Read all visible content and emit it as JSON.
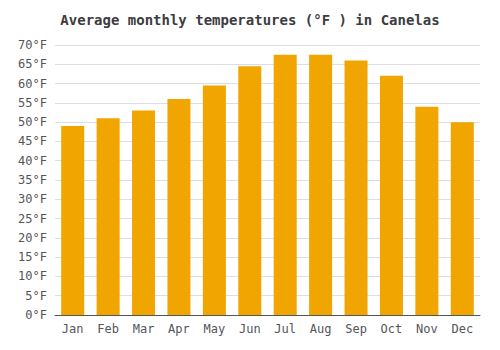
{
  "chart_data": {
    "type": "bar",
    "title": "Average monthly temperatures (°F ) in Canelas",
    "categories": [
      "Jan",
      "Feb",
      "Mar",
      "Apr",
      "May",
      "Jun",
      "Jul",
      "Aug",
      "Sep",
      "Oct",
      "Nov",
      "Dec"
    ],
    "values": [
      49.0,
      51.0,
      53.0,
      56.0,
      59.5,
      64.5,
      67.5,
      67.5,
      66.0,
      62.0,
      54.0,
      50.0
    ],
    "color": "#F0A500",
    "ylim": [
      0,
      70
    ],
    "yticks": [
      {
        "value": 0,
        "label": "0°F"
      },
      {
        "value": 5,
        "label": "5°F"
      },
      {
        "value": 10,
        "label": "10°F"
      },
      {
        "value": 15,
        "label": "15°F"
      },
      {
        "value": 20,
        "label": "20°F"
      },
      {
        "value": 25,
        "label": "25°F"
      },
      {
        "value": 30,
        "label": "30°F"
      },
      {
        "value": 35,
        "label": "35°F"
      },
      {
        "value": 40,
        "label": "40°F"
      },
      {
        "value": 45,
        "label": "45°F"
      },
      {
        "value": 50,
        "label": "50°F"
      },
      {
        "value": 55,
        "label": "55°F"
      },
      {
        "value": 60,
        "label": "60°F"
      },
      {
        "value": 65,
        "label": "65°F"
      },
      {
        "value": 70,
        "label": "70°F"
      }
    ],
    "grid": true
  }
}
